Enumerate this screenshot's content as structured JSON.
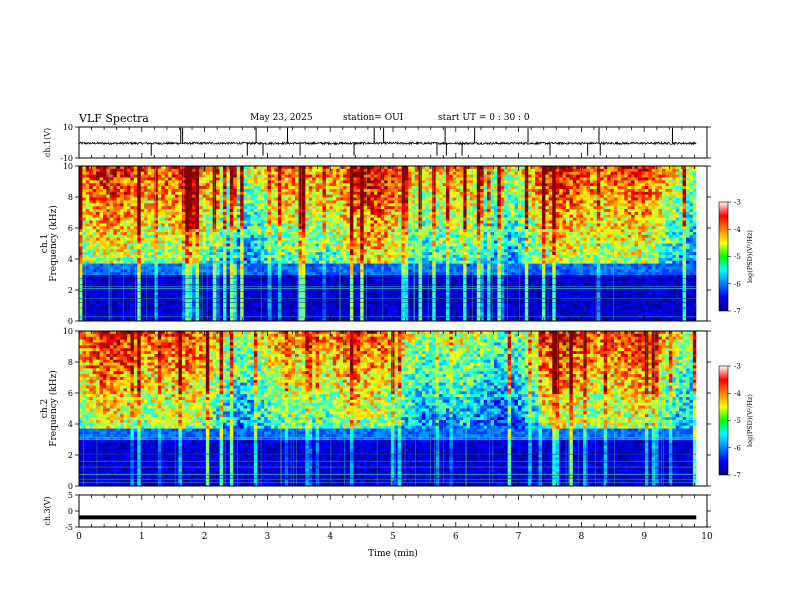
{
  "header": {
    "title": "VLF Spectra",
    "date": "May 23, 2025",
    "station": "station= OUI",
    "start": "start UT = 0 : 30 : 0"
  },
  "panels": {
    "ch1_wave": {
      "ylabel": "ch.1(V)",
      "yticks": [
        "10",
        "-10"
      ]
    },
    "ch1_spec": {
      "ylabel_top": "ch.1",
      "ylabel": "Frequency (kHz)",
      "yticks": [
        "0",
        "2",
        "4",
        "6",
        "8",
        "10"
      ]
    },
    "ch2_spec": {
      "ylabel_top": "ch.2",
      "ylabel": "Frequency (kHz)",
      "yticks": [
        "0",
        "2",
        "4",
        "6",
        "8",
        "10"
      ]
    },
    "ch3_wave": {
      "ylabel": "ch.3(V)",
      "yticks": [
        "5",
        "0",
        "-5"
      ]
    }
  },
  "colorbar": {
    "label": "log(PSD)(V²/Hz)",
    "ticks": [
      "-3",
      "-4",
      "-5",
      "-6",
      "-7"
    ]
  },
  "xaxis": {
    "label": "Time (min)",
    "ticks": [
      "0",
      "1",
      "2",
      "3",
      "4",
      "5",
      "6",
      "7",
      "8",
      "9",
      "10"
    ]
  },
  "chart_data": [
    {
      "type": "line",
      "panel": "ch1_wave",
      "ylabel": "ch.1(V)",
      "ylim": [
        -10,
        10
      ],
      "xlim": [
        0,
        10
      ],
      "baseline": -0.5,
      "spikes_up": [
        1.62,
        1.65,
        2.82,
        3.32,
        4.7,
        4.85,
        5.83,
        6.3,
        7.15,
        8.28,
        9.45
      ],
      "spikes_down": [
        1.15,
        2.68,
        2.93,
        3.52,
        4.38,
        5.7,
        5.85,
        6.1,
        7.5,
        8.1,
        8.3
      ]
    },
    {
      "type": "heatmap",
      "panel": "ch1_spec",
      "ylabel": "Frequency (kHz)",
      "xlim": [
        0,
        9.83
      ],
      "ylim": [
        0,
        10
      ],
      "zlim": [
        -7,
        -3
      ],
      "zlabel": "log(PSD)(V²/Hz)"
    },
    {
      "type": "heatmap",
      "panel": "ch2_spec",
      "ylabel": "Frequency (kHz)",
      "xlim": [
        0,
        9.83
      ],
      "ylim": [
        0,
        10
      ],
      "zlim": [
        -7,
        -3
      ],
      "zlabel": "log(PSD)(V²/Hz)"
    },
    {
      "type": "line",
      "panel": "ch3_wave",
      "ylabel": "ch.3(V)",
      "ylim": [
        -5,
        5
      ],
      "xlim": [
        0,
        10
      ],
      "baseline": -2
    }
  ]
}
